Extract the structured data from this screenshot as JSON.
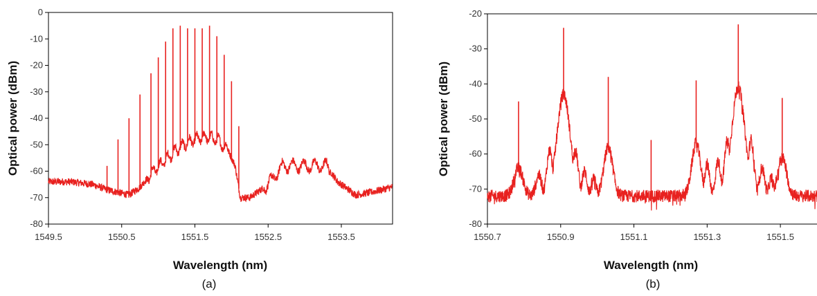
{
  "chart_data": [
    {
      "type": "line",
      "panel_label": "(a)",
      "xlabel": "Wavelength (nm)",
      "ylabel": "Optical power (dBm)",
      "xlim": [
        1549.5,
        1554.2
      ],
      "ylim": [
        -80,
        0
      ],
      "xticks": [
        1549.5,
        1550.5,
        1551.5,
        1552.5,
        1553.5
      ],
      "xtick_labels": [
        "1549.5",
        "1550.5",
        "1551.5",
        "1552.5",
        "1553.5"
      ],
      "yticks": [
        0,
        -10,
        -20,
        -30,
        -40,
        -50,
        -60,
        -70,
        -80
      ],
      "ytick_labels": [
        "0",
        "-10",
        "-20",
        "-30",
        "-40",
        "-50",
        "-60",
        "-70",
        "-80"
      ],
      "grid": false,
      "line_color": "#e8211f",
      "frame": "box",
      "envelope": {
        "x": [
          1549.5,
          1549.8,
          1550.1,
          1550.3,
          1550.45,
          1550.6,
          1550.75,
          1550.9,
          1551.05,
          1551.2,
          1551.35,
          1551.5,
          1551.65,
          1551.8,
          1551.95,
          1552.05,
          1552.12,
          1552.25,
          1552.5,
          1552.7,
          1552.9,
          1553.1,
          1553.3,
          1553.45,
          1553.7,
          1553.9,
          1554.2
        ],
        "y": [
          -64,
          -64,
          -65,
          -67,
          -68,
          -69,
          -66,
          -61,
          -57,
          -53,
          -50,
          -48,
          -47,
          -48,
          -52,
          -58,
          -70,
          -70,
          -65,
          -58,
          -58,
          -58,
          -58,
          -64,
          -69,
          -68,
          -66
        ]
      },
      "spikes": {
        "x": [
          1550.15,
          1550.3,
          1550.45,
          1550.6,
          1550.75,
          1550.9,
          1551.0,
          1551.1,
          1551.2,
          1551.3,
          1551.4,
          1551.5,
          1551.6,
          1551.7,
          1551.8,
          1551.9,
          1552.0,
          1552.1
        ],
        "y": [
          -65,
          -58,
          -48,
          -40,
          -31,
          -23,
          -17,
          -11,
          -6,
          -5,
          -6,
          -6,
          -6,
          -5,
          -9,
          -16,
          -26,
          -43
        ]
      }
    },
    {
      "type": "line",
      "panel_label": "(b)",
      "xlabel": "Wavelength (nm)",
      "ylabel": "Optical power (dBm)",
      "xlim": [
        1550.7,
        1551.6
      ],
      "ylim": [
        -80,
        -20
      ],
      "xticks": [
        1550.7,
        1550.9,
        1551.1,
        1551.3,
        1551.5
      ],
      "xtick_labels": [
        "1550.7",
        "1550.9",
        "1551.1",
        "1551.3",
        "1551.5"
      ],
      "yticks": [
        -20,
        -30,
        -40,
        -50,
        -60,
        -70,
        -80
      ],
      "ytick_labels": [
        "-20",
        "-30",
        "-40",
        "-50",
        "-60",
        "-70",
        "-80"
      ],
      "grid": false,
      "line_color": "#e8211f",
      "frame": "left-top-bottom",
      "baseline": -72,
      "peaks": [
        {
          "x": 1550.785,
          "y": -64,
          "w": 0.012
        },
        {
          "x": 1550.84,
          "y": -66,
          "w": 0.008
        },
        {
          "x": 1550.87,
          "y": -59,
          "w": 0.008
        },
        {
          "x": 1550.908,
          "y": -43,
          "w": 0.018
        },
        {
          "x": 1550.94,
          "y": -59,
          "w": 0.008
        },
        {
          "x": 1550.965,
          "y": -65,
          "w": 0.007
        },
        {
          "x": 1550.99,
          "y": -67,
          "w": 0.006
        },
        {
          "x": 1551.03,
          "y": -58,
          "w": 0.012
        },
        {
          "x": 1551.27,
          "y": -57,
          "w": 0.012
        },
        {
          "x": 1551.3,
          "y": -63,
          "w": 0.007
        },
        {
          "x": 1551.33,
          "y": -62,
          "w": 0.007
        },
        {
          "x": 1551.355,
          "y": -56,
          "w": 0.008
        },
        {
          "x": 1551.385,
          "y": -41,
          "w": 0.018
        },
        {
          "x": 1551.42,
          "y": -56,
          "w": 0.008
        },
        {
          "x": 1551.45,
          "y": -64,
          "w": 0.007
        },
        {
          "x": 1551.475,
          "y": -67,
          "w": 0.006
        },
        {
          "x": 1551.505,
          "y": -61,
          "w": 0.012
        }
      ],
      "spikes": {
        "x": [
          1550.785,
          1550.908,
          1551.03,
          1551.147,
          1551.27,
          1551.385,
          1551.505
        ],
        "y": [
          -45,
          -24,
          -38,
          -56,
          -39,
          -23,
          -44
        ]
      }
    }
  ]
}
